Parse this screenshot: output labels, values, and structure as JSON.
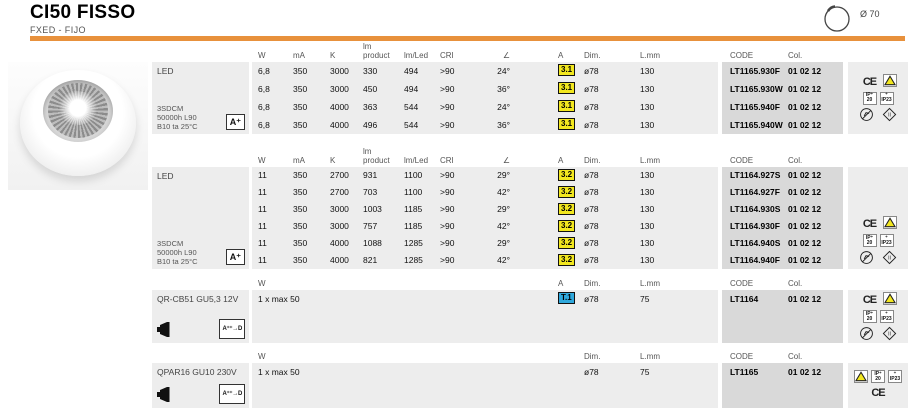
{
  "header": {
    "title": "CI50 FISSO",
    "subtitle": "FXED - FIJO",
    "cutout_label": "Ø 70"
  },
  "colors": {
    "accent": "#E8913C",
    "badge_yellow": "#F2E71F",
    "badge_blue": "#2FA8DC",
    "band_gray": "#EDEDED",
    "code_gray": "#D9D9D9"
  },
  "groups": [
    {
      "label": "LED",
      "sublabel": "3SDCM\n50000h L90\nB10 ta 25°C",
      "energy_badge": "A⁺",
      "headers": {
        "w": "W",
        "ma": "mA",
        "k": "K",
        "lmp": "lm\nproduct",
        "lml": "lm/Led",
        "cri": "CRI",
        "ang": "∠",
        "a": "A",
        "dim": "Dim.",
        "lmm": "L.mm"
      },
      "code_headers": {
        "code": "CODE",
        "col": "Col."
      },
      "a_badge": "yellow",
      "rows": [
        {
          "w": "6,8",
          "ma": "350",
          "k": "3000",
          "lmp": "330",
          "lml": "494",
          "cri": ">90",
          "ang": "24°",
          "a": "3.1",
          "dim": "ø78",
          "lmm": "130"
        },
        {
          "w": "6,8",
          "ma": "350",
          "k": "3000",
          "lmp": "450",
          "lml": "494",
          "cri": ">90",
          "ang": "36°",
          "a": "3.1",
          "dim": "ø78",
          "lmm": "130"
        },
        {
          "w": "6,8",
          "ma": "350",
          "k": "4000",
          "lmp": "363",
          "lml": "544",
          "cri": ">90",
          "ang": "24°",
          "a": "3.1",
          "dim": "ø78",
          "lmm": "130"
        },
        {
          "w": "6,8",
          "ma": "350",
          "k": "4000",
          "lmp": "496",
          "lml": "544",
          "cri": ">90",
          "ang": "36°",
          "a": "3.1",
          "dim": "ø78",
          "lmm": "130"
        }
      ],
      "code_rows": [
        {
          "code": "LT1165.930F",
          "col": "01 02 12"
        },
        {
          "code": "LT1165.930W",
          "col": "01 02 12"
        },
        {
          "code": "LT1165.940F",
          "col": "01 02 12"
        },
        {
          "code": "LT1165.940W",
          "col": "01 02 12"
        }
      ],
      "icons": [
        "ce",
        "warning-triangle",
        "ip20",
        "ip23",
        "no-dim",
        "class-ii"
      ]
    },
    {
      "label": "LED",
      "sublabel": "3SDCM\n50000h L90\nB10 ta 25°C",
      "energy_badge": "A⁺",
      "headers": {
        "w": "W",
        "ma": "mA",
        "k": "K",
        "lmp": "lm\nproduct",
        "lml": "lm/Led",
        "cri": "CRI",
        "ang": "∠",
        "a": "A",
        "dim": "Dim.",
        "lmm": "L.mm"
      },
      "code_headers": {
        "code": "CODE",
        "col": "Col."
      },
      "a_badge": "yellow",
      "rows": [
        {
          "w": "11",
          "ma": "350",
          "k": "2700",
          "lmp": "931",
          "lml": "1100",
          "cri": ">90",
          "ang": "29°",
          "a": "3.2",
          "dim": "ø78",
          "lmm": "130"
        },
        {
          "w": "11",
          "ma": "350",
          "k": "2700",
          "lmp": "703",
          "lml": "1100",
          "cri": ">90",
          "ang": "42°",
          "a": "3.2",
          "dim": "ø78",
          "lmm": "130"
        },
        {
          "w": "11",
          "ma": "350",
          "k": "3000",
          "lmp": "1003",
          "lml": "1185",
          "cri": ">90",
          "ang": "29°",
          "a": "3.2",
          "dim": "ø78",
          "lmm": "130"
        },
        {
          "w": "11",
          "ma": "350",
          "k": "3000",
          "lmp": "757",
          "lml": "1185",
          "cri": ">90",
          "ang": "42°",
          "a": "3.2",
          "dim": "ø78",
          "lmm": "130"
        },
        {
          "w": "11",
          "ma": "350",
          "k": "4000",
          "lmp": "1088",
          "lml": "1285",
          "cri": ">90",
          "ang": "29°",
          "a": "3.2",
          "dim": "ø78",
          "lmm": "130"
        },
        {
          "w": "11",
          "ma": "350",
          "k": "4000",
          "lmp": "821",
          "lml": "1285",
          "cri": ">90",
          "ang": "42°",
          "a": "3.2",
          "dim": "ø78",
          "lmm": "130"
        }
      ],
      "code_rows": [
        {
          "code": "LT1164.927S",
          "col": "01 02 12"
        },
        {
          "code": "LT1164.927F",
          "col": "01 02 12"
        },
        {
          "code": "LT1164.930S",
          "col": "01 02 12"
        },
        {
          "code": "LT1164.930F",
          "col": "01 02 12"
        },
        {
          "code": "LT1164.940S",
          "col": "01 02 12"
        },
        {
          "code": "LT1164.940F",
          "col": "01 02 12"
        }
      ],
      "icons": [
        "ce",
        "warning-triangle",
        "ip20",
        "ip23",
        "no-dim",
        "class-ii"
      ]
    },
    {
      "label": "QR-CB51 GU5,3 12V",
      "energy_badge": "A⁺⁺→D",
      "headers": {
        "w": "W",
        "a": "A",
        "dim": "Dim.",
        "lmm": "L.mm"
      },
      "code_headers": {
        "code": "CODE",
        "col": "Col."
      },
      "a_badge": "blue",
      "rows": [
        {
          "w": "1 x max 50",
          "a": "T.1",
          "dim": "ø78",
          "lmm": "75"
        }
      ],
      "code_rows": [
        {
          "code": "LT1164",
          "col": "01 02 12"
        }
      ],
      "icons": [
        "ce",
        "warning-triangle",
        "ip20",
        "ip23",
        "no-dim",
        "class-ii"
      ]
    },
    {
      "label": "QPAR16 GU10 230V",
      "energy_badge": "A⁺⁺→D",
      "headers": {
        "w": "W",
        "dim": "Dim.",
        "lmm": "L.mm"
      },
      "code_headers": {
        "code": "CODE",
        "col": "Col."
      },
      "rows": [
        {
          "w": "1 x max 50",
          "dim": "ø78",
          "lmm": "75"
        }
      ],
      "code_rows": [
        {
          "code": "LT1165",
          "col": "01 02 12"
        }
      ],
      "icons": [
        "warning-triangle",
        "ip20",
        "ip23",
        "ce"
      ]
    }
  ]
}
